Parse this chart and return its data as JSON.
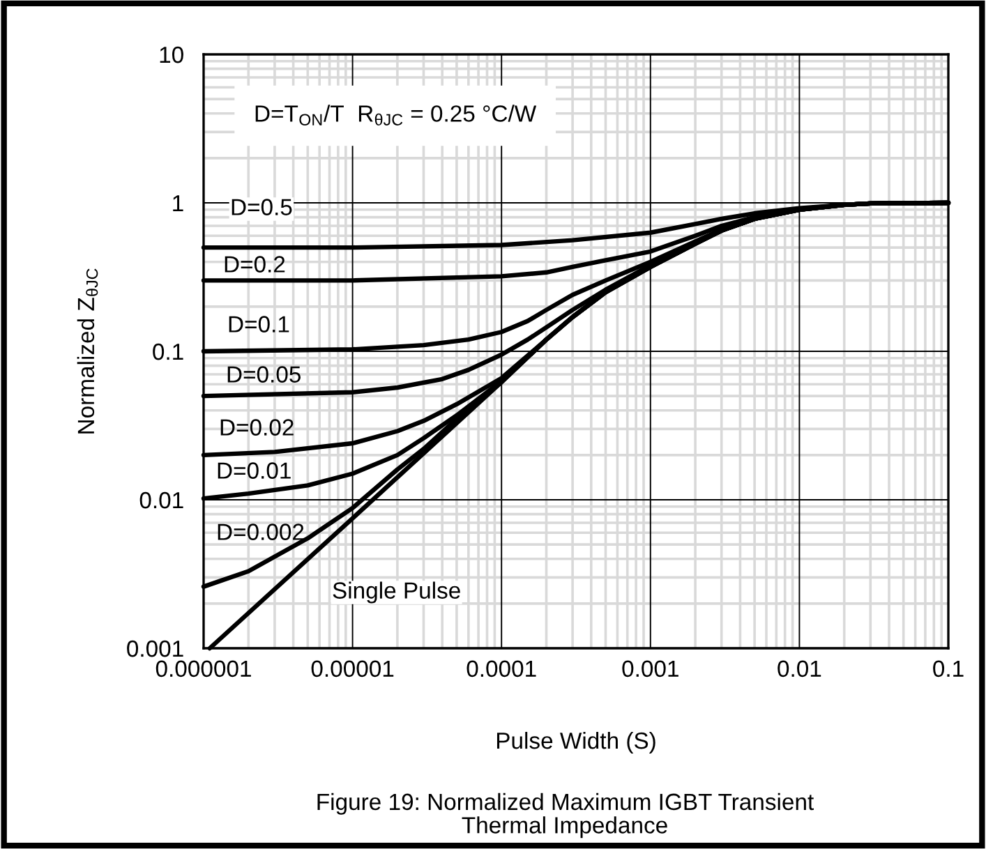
{
  "chart_data": {
    "type": "line",
    "xlabel": "Pulse Width (S)",
    "ylabel": "Normalized Z$_{θJC}$",
    "log": "xy",
    "grid": true,
    "marker": "none",
    "line_style": "solid",
    "xlim": [
      1e-06,
      0.1
    ],
    "xticks": [
      {
        "value": 1e-06,
        "label": "0.000001"
      },
      {
        "value": 1e-05,
        "label": "0.00001"
      },
      {
        "value": 0.0001,
        "label": "0.0001"
      },
      {
        "value": 0.001,
        "label": "0.001"
      },
      {
        "value": 0.01,
        "label": "0.01"
      },
      {
        "value": 0.1,
        "label": "0.1"
      }
    ],
    "ylim": [
      0.001,
      10
    ],
    "yticks": [
      {
        "value": 0.001,
        "label": "0.001"
      },
      {
        "value": 0.01,
        "label": "0.01"
      },
      {
        "value": 0.1,
        "label": "0.1"
      },
      {
        "value": 1,
        "label": "1"
      },
      {
        "value": 10,
        "label": "10"
      }
    ],
    "series": [
      {
        "color": "#000000",
        "x": [
          1e-06,
          1e-05,
          0.0001,
          0.0003,
          0.001,
          0.002,
          0.003,
          0.005,
          0.01,
          0.02,
          0.03,
          0.1
        ],
        "values": [
          0.5,
          0.5,
          0.52,
          0.56,
          0.63,
          0.72,
          0.78,
          0.85,
          0.92,
          0.97,
          0.99,
          1.0
        ]
      },
      {
        "color": "#000000",
        "x": [
          1e-06,
          1e-05,
          0.0001,
          0.0002,
          0.0003,
          0.0005,
          0.001,
          0.002,
          0.003,
          0.005,
          0.01,
          0.02,
          0.03,
          0.1
        ],
        "values": [
          0.3,
          0.3,
          0.32,
          0.34,
          0.37,
          0.41,
          0.47,
          0.6,
          0.7,
          0.8,
          0.91,
          0.97,
          0.99,
          1.0
        ]
      },
      {
        "color": "#000000",
        "x": [
          1e-06,
          1e-05,
          3e-05,
          6e-05,
          0.0001,
          0.00015,
          0.0002,
          0.0003,
          0.0005,
          0.001,
          0.002,
          0.003,
          0.005,
          0.01,
          0.02,
          0.03,
          0.1
        ],
        "values": [
          0.1,
          0.103,
          0.11,
          0.12,
          0.135,
          0.16,
          0.19,
          0.24,
          0.3,
          0.4,
          0.55,
          0.66,
          0.79,
          0.9,
          0.97,
          0.99,
          1.0
        ]
      },
      {
        "color": "#000000",
        "x": [
          1e-06,
          1e-05,
          2e-05,
          4e-05,
          6e-05,
          0.0001,
          0.00015,
          0.0002,
          0.0003,
          0.0005,
          0.001,
          0.002,
          0.003,
          0.005,
          0.01,
          0.02,
          0.03,
          0.1
        ],
        "values": [
          0.05,
          0.053,
          0.057,
          0.065,
          0.075,
          0.095,
          0.12,
          0.145,
          0.19,
          0.26,
          0.38,
          0.54,
          0.65,
          0.78,
          0.9,
          0.97,
          0.99,
          1.0
        ]
      },
      {
        "color": "#000000",
        "x": [
          1e-06,
          3e-06,
          1e-05,
          2e-05,
          3e-05,
          5e-05,
          0.0001,
          0.0002,
          0.0003,
          0.0005,
          0.001,
          0.002,
          0.003,
          0.005,
          0.01,
          0.02,
          0.03,
          0.1
        ],
        "values": [
          0.02,
          0.021,
          0.024,
          0.029,
          0.034,
          0.044,
          0.066,
          0.12,
          0.17,
          0.25,
          0.37,
          0.53,
          0.65,
          0.78,
          0.9,
          0.97,
          0.99,
          1.0
        ]
      },
      {
        "color": "#000000",
        "x": [
          1e-06,
          2e-06,
          5e-06,
          1e-05,
          2e-05,
          3e-05,
          5e-05,
          0.0001,
          0.0002,
          0.0003,
          0.0005,
          0.001,
          0.002,
          0.003,
          0.005,
          0.01,
          0.02,
          0.03,
          0.1
        ],
        "values": [
          0.0102,
          0.011,
          0.0125,
          0.015,
          0.02,
          0.026,
          0.037,
          0.063,
          0.12,
          0.17,
          0.25,
          0.37,
          0.53,
          0.65,
          0.78,
          0.9,
          0.97,
          0.99,
          1.0
        ]
      },
      {
        "color": "#000000",
        "x": [
          1e-06,
          2e-06,
          5e-06,
          1e-05,
          2e-05,
          3e-05,
          5e-05,
          0.0001,
          0.0002,
          0.0003,
          0.0005,
          0.001,
          0.002,
          0.003,
          0.005,
          0.01,
          0.02,
          0.03,
          0.1
        ],
        "values": [
          0.0026,
          0.0033,
          0.0055,
          0.0088,
          0.016,
          0.022,
          0.035,
          0.062,
          0.12,
          0.17,
          0.25,
          0.37,
          0.53,
          0.65,
          0.78,
          0.9,
          0.97,
          0.99,
          1.0
        ]
      },
      {
        "color": "#000000",
        "x": [
          1.1e-06,
          1e-05,
          0.0001,
          0.0002,
          0.0003,
          0.0005,
          0.001,
          0.002,
          0.003,
          0.005,
          0.01,
          0.02,
          0.03,
          0.1
        ],
        "values": [
          0.001,
          0.0075,
          0.062,
          0.12,
          0.17,
          0.25,
          0.37,
          0.53,
          0.65,
          0.78,
          0.9,
          0.97,
          0.99,
          1.0
        ]
      }
    ],
    "annotations": [
      "D=T$_{ON}$/T  R$_{θJC}$ = 0.25 °C/W",
      "D=0.5",
      "D=0.2",
      "D=0.1",
      "D=0.05",
      "D=0.02",
      "D=0.01",
      "D=0.002",
      "Single Pulse",
      "Figure 19: Normalized Maximum IGBT Transient\nThermal Impedance"
    ]
  }
}
